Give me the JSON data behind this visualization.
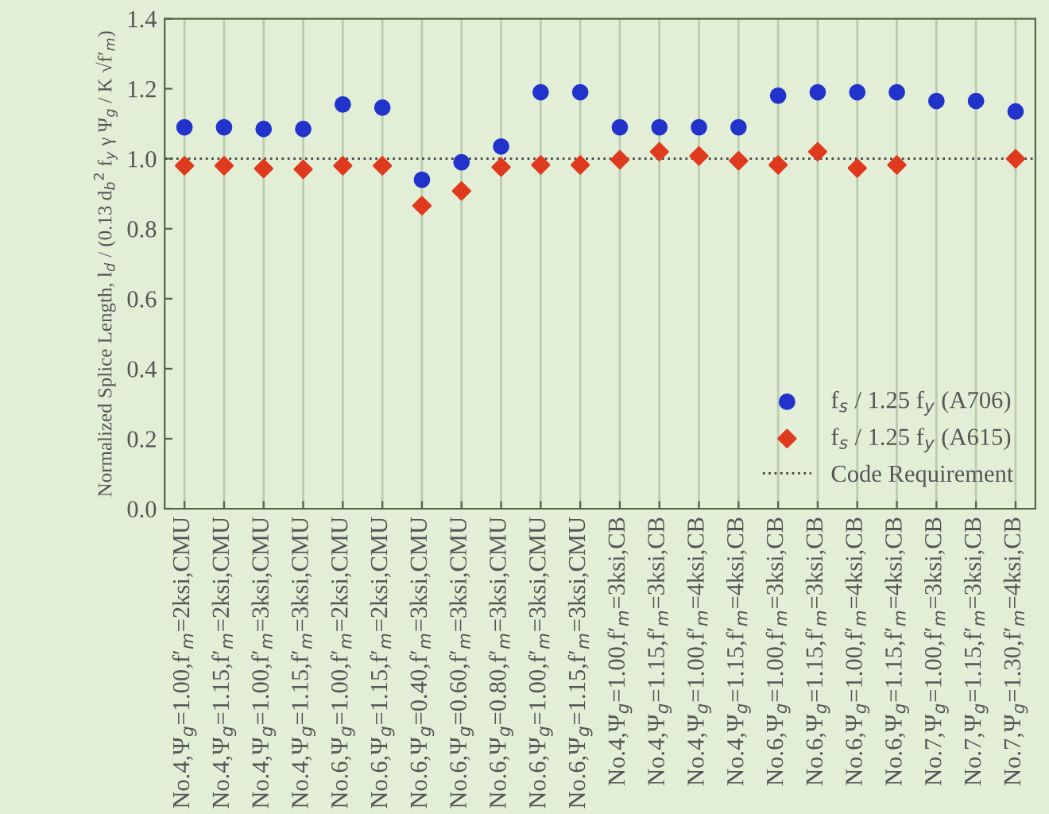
{
  "chart_data": {
    "type": "scatter",
    "categories": [
      "No.4,Ψ$_{g}$=1.00,f′$_{m}$=2ksi,CMU",
      "No.4,Ψ$_{g}$=1.15,f′$_{m}$=2ksi,CMU",
      "No.4,Ψ$_{g}$=1.00,f′$_{m}$=3ksi,CMU",
      "No.4,Ψ$_{g}$=1.15,f′$_{m}$=3ksi,CMU",
      "No.6,Ψ$_{g}$=1.00,f′$_{m}$=2ksi,CMU",
      "No.6,Ψ$_{g}$=1.15,f′$_{m}$=2ksi,CMU",
      "No.6,Ψ$_{g}$=0.40,f′$_{m}$=3ksi,CMU",
      "No.6,Ψ$_{g}$=0.60,f′$_{m}$=3ksi,CMU",
      "No.6,Ψ$_{g}$=0.80,f′$_{m}$=3ksi,CMU",
      "No.6,Ψ$_{g}$=1.00,f′$_{m}$=3ksi,CMU",
      "No.6,Ψ$_{g}$=1.15,f′$_{m}$=3ksi,CMU",
      "No.4,Ψ$_{g}$=1.00,f′$_{m}$=3ksi,CB",
      "No.4,Ψ$_{g}$=1.15,f′$_{m}$=3ksi,CB",
      "No.4,Ψ$_{g}$=1.00,f′$_{m}$=4ksi,CB",
      "No.4,Ψ$_{g}$=1.15,f′$_{m}$=4ksi,CB",
      "No.6,Ψ$_{g}$=1.00,f′$_{m}$=3ksi,CB",
      "No.6,Ψ$_{g}$=1.15,f′$_{m}$=3ksi,CB",
      "No.6,Ψ$_{g}$=1.00,f′$_{m}$=4ksi,CB",
      "No.6,Ψ$_{g}$=1.15,f′$_{m}$=4ksi,CB",
      "No.7,Ψ$_{g}$=1.00,f′$_{m}$=3ksi,CB",
      "No.7,Ψ$_{g}$=1.15,f′$_{m}$=3ksi,CB",
      "No.7,Ψ$_{g}$=1.30,f′$_{m}$=4ksi,CB"
    ],
    "ylabel": "Normalized Splice Length, l$_{d}$ / (0.13 d$_{b}$$^{2}$ f$_{y}$ γ Ψ$_{g}$ / K √f′$_{m}$)",
    "ylim": [
      0,
      1.4
    ],
    "yticks": [
      {
        "value": 0,
        "label": "0.0"
      },
      0.2,
      0.4,
      0.6,
      0.8,
      {
        "value": 1,
        "label": "1.0"
      },
      1.2,
      1.4
    ],
    "grid": "x",
    "legend": "bottom right",
    "series": [
      {
        "name": "f$_{s}$ / 1.25 f$_{y}$ (A706)",
        "color": "#2233cc",
        "marker": "circle",
        "values": [
          1.09,
          1.09,
          1.085,
          1.085,
          1.155,
          1.146,
          0.94,
          0.99,
          1.035,
          1.19,
          1.19,
          1.09,
          1.09,
          1.09,
          1.09,
          1.18,
          1.19,
          1.19,
          1.19,
          1.165,
          1.165,
          1.135
        ]
      },
      {
        "name": "f$_{s}$ / 1.25 f$_{y}$ (A615)",
        "color": "#e03a1e",
        "marker": "diamond",
        "values": [
          0.98,
          0.98,
          0.972,
          0.97,
          0.98,
          0.98,
          0.866,
          0.908,
          0.976,
          0.982,
          0.982,
          0.997,
          1.02,
          1.008,
          0.994,
          0.982,
          1.02,
          0.973,
          0.982,
          null,
          null,
          1.0
        ]
      }
    ],
    "ref_lines": [
      {
        "axis": "y",
        "value": 1.0,
        "label": "Code Requirement",
        "color": "#444444",
        "line_style": "dotted"
      }
    ]
  }
}
